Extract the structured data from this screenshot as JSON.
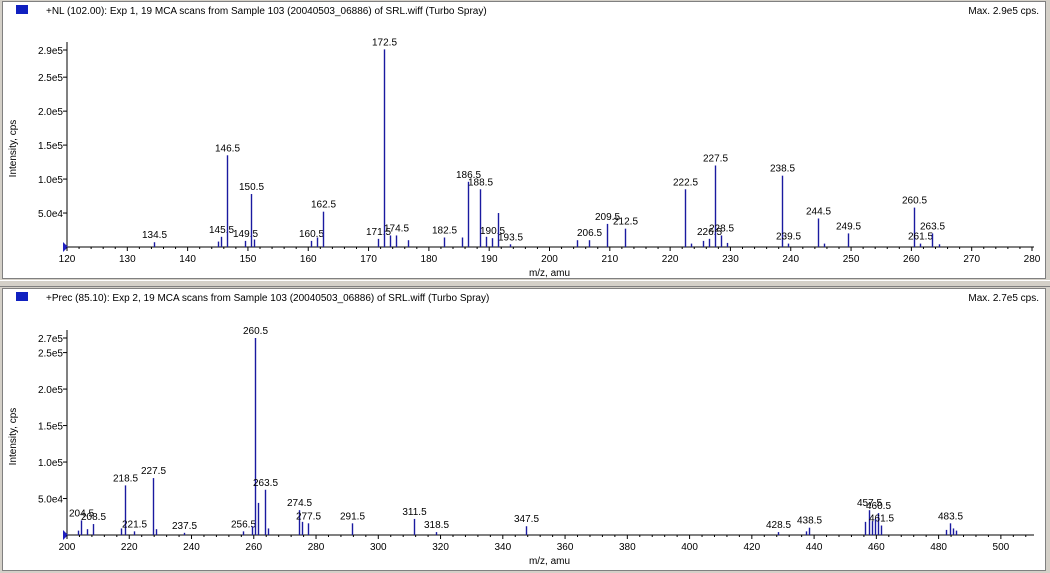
{
  "panels": [
    {
      "title": "+NL (102.00): Exp 1, 19 MCA scans from Sample 103 (20040503_06886) of SRL.wiff (Turbo Spray)",
      "max_text": "Max. 2.9e5 cps."
    },
    {
      "title": "+Prec (85.10): Exp 2, 19 MCA scans from Sample 103 (20040503_06886) of SRL.wiff (Turbo Spray)",
      "max_text": "Max. 2.7e5 cps."
    }
  ],
  "colors": {
    "peak": "#1a1aa0",
    "marker": "#2020c0",
    "axis": "#000000"
  },
  "chart_data": [
    {
      "type": "bar",
      "xlabel": "m/z, amu",
      "ylabel": "Intensity, cps",
      "xlim": [
        120,
        280
      ],
      "ylim": [
        0,
        290000
      ],
      "xticks": [
        120,
        130,
        140,
        150,
        160,
        170,
        180,
        190,
        200,
        210,
        220,
        230,
        240,
        250,
        260,
        270,
        280
      ],
      "yticks": [
        {
          "value": 50000,
          "label": "5.0e4"
        },
        {
          "value": 100000,
          "label": "1.0e5"
        },
        {
          "value": 150000,
          "label": "1.5e5"
        },
        {
          "value": 200000,
          "label": "2.0e5"
        },
        {
          "value": 250000,
          "label": "2.5e5"
        },
        {
          "value": 290000,
          "label": "2.9e5"
        }
      ],
      "peaks": [
        {
          "x": 134.5,
          "y": 7000,
          "label": "134.5"
        },
        {
          "x": 145.5,
          "y": 15000,
          "label": "145.5"
        },
        {
          "x": 146.5,
          "y": 135000,
          "label": "146.5"
        },
        {
          "x": 149.5,
          "y": 9000,
          "label": "149.5"
        },
        {
          "x": 150.5,
          "y": 78000,
          "label": "150.5"
        },
        {
          "x": 160.5,
          "y": 9000,
          "label": "160.5"
        },
        {
          "x": 162.5,
          "y": 52000,
          "label": "162.5"
        },
        {
          "x": 171.5,
          "y": 12000,
          "label": "171.5"
        },
        {
          "x": 172.5,
          "y": 291000,
          "label": "172.5"
        },
        {
          "x": 174.5,
          "y": 17000,
          "label": "174.5"
        },
        {
          "x": 182.5,
          "y": 14000,
          "label": "182.5"
        },
        {
          "x": 186.5,
          "y": 96000,
          "label": "186.5"
        },
        {
          "x": 188.5,
          "y": 85000,
          "label": "188.5"
        },
        {
          "x": 190.5,
          "y": 13000,
          "label": "190.5"
        },
        {
          "x": 193.5,
          "y": 4000,
          "label": "193.5"
        },
        {
          "x": 206.5,
          "y": 10000,
          "label": "206.5"
        },
        {
          "x": 209.5,
          "y": 34000,
          "label": "209.5"
        },
        {
          "x": 212.5,
          "y": 27000,
          "label": "212.5"
        },
        {
          "x": 222.5,
          "y": 85000,
          "label": "222.5"
        },
        {
          "x": 226.5,
          "y": 12000,
          "label": "226.5"
        },
        {
          "x": 227.5,
          "y": 120000,
          "label": "227.5"
        },
        {
          "x": 228.5,
          "y": 17000,
          "label": "228.5"
        },
        {
          "x": 238.5,
          "y": 105000,
          "label": "238.5"
        },
        {
          "x": 239.5,
          "y": 5000,
          "label": "239.5"
        },
        {
          "x": 244.5,
          "y": 42000,
          "label": "244.5"
        },
        {
          "x": 249.5,
          "y": 20000,
          "label": "249.5"
        },
        {
          "x": 260.5,
          "y": 58000,
          "label": "260.5"
        },
        {
          "x": 261.5,
          "y": 5000,
          "label": "261.5"
        },
        {
          "x": 263.5,
          "y": 20000,
          "label": "263.5"
        },
        {
          "x": 145.0,
          "y": 8000,
          "label": ""
        },
        {
          "x": 151.0,
          "y": 11000,
          "label": ""
        },
        {
          "x": 161.5,
          "y": 14000,
          "label": ""
        },
        {
          "x": 173.5,
          "y": 17000,
          "label": ""
        },
        {
          "x": 176.5,
          "y": 10000,
          "label": ""
        },
        {
          "x": 185.5,
          "y": 14000,
          "label": ""
        },
        {
          "x": 189.5,
          "y": 15000,
          "label": ""
        },
        {
          "x": 191.5,
          "y": 50000,
          "label": ""
        },
        {
          "x": 204.5,
          "y": 10000,
          "label": ""
        },
        {
          "x": 223.5,
          "y": 5000,
          "label": ""
        },
        {
          "x": 225.5,
          "y": 9000,
          "label": ""
        },
        {
          "x": 229.5,
          "y": 6000,
          "label": ""
        },
        {
          "x": 245.5,
          "y": 5000,
          "label": ""
        },
        {
          "x": 264.5,
          "y": 4000,
          "label": ""
        }
      ]
    },
    {
      "type": "bar",
      "xlabel": "m/z, amu",
      "ylabel": "Intensity, cps",
      "xlim": [
        200,
        510
      ],
      "ylim": [
        0,
        270000
      ],
      "xticks": [
        200,
        220,
        240,
        260,
        280,
        300,
        320,
        340,
        360,
        380,
        400,
        420,
        440,
        460,
        480,
        500
      ],
      "yticks": [
        {
          "value": 50000,
          "label": "5.0e4"
        },
        {
          "value": 100000,
          "label": "1.0e5"
        },
        {
          "value": 150000,
          "label": "1.5e5"
        },
        {
          "value": 200000,
          "label": "2.0e5"
        },
        {
          "value": 250000,
          "label": "2.5e5"
        },
        {
          "value": 270000,
          "label": "2.7e5"
        }
      ],
      "peaks": [
        {
          "x": 204.5,
          "y": 20000,
          "label": "204.5"
        },
        {
          "x": 208.5,
          "y": 15000,
          "label": "208.5"
        },
        {
          "x": 218.5,
          "y": 68000,
          "label": "218.5"
        },
        {
          "x": 221.5,
          "y": 5000,
          "label": "221.5"
        },
        {
          "x": 227.5,
          "y": 78000,
          "label": "227.5"
        },
        {
          "x": 237.5,
          "y": 3000,
          "label": "237.5"
        },
        {
          "x": 256.5,
          "y": 5000,
          "label": "256.5"
        },
        {
          "x": 260.5,
          "y": 270000,
          "label": "260.5"
        },
        {
          "x": 263.5,
          "y": 62000,
          "label": "263.5"
        },
        {
          "x": 274.5,
          "y": 34000,
          "label": "274.5"
        },
        {
          "x": 277.5,
          "y": 16000,
          "label": "277.5"
        },
        {
          "x": 291.5,
          "y": 16000,
          "label": "291.5"
        },
        {
          "x": 311.5,
          "y": 22000,
          "label": "311.5"
        },
        {
          "x": 318.5,
          "y": 4000,
          "label": "318.5"
        },
        {
          "x": 347.5,
          "y": 12000,
          "label": "347.5"
        },
        {
          "x": 428.5,
          "y": 4000,
          "label": "428.5"
        },
        {
          "x": 438.5,
          "y": 10000,
          "label": "438.5"
        },
        {
          "x": 457.5,
          "y": 34000,
          "label": "457.5"
        },
        {
          "x": 460.5,
          "y": 30000,
          "label": "460.5"
        },
        {
          "x": 461.5,
          "y": 13000,
          "label": "461.5"
        },
        {
          "x": 483.5,
          "y": 16000,
          "label": "483.5"
        },
        {
          "x": 203.5,
          "y": 6000,
          "label": ""
        },
        {
          "x": 206.5,
          "y": 8000,
          "label": ""
        },
        {
          "x": 217.5,
          "y": 9000,
          "label": ""
        },
        {
          "x": 228.5,
          "y": 8000,
          "label": ""
        },
        {
          "x": 259.5,
          "y": 12000,
          "label": ""
        },
        {
          "x": 261.5,
          "y": 44000,
          "label": ""
        },
        {
          "x": 264.5,
          "y": 9000,
          "label": ""
        },
        {
          "x": 275.5,
          "y": 18000,
          "label": ""
        },
        {
          "x": 437.5,
          "y": 5000,
          "label": ""
        },
        {
          "x": 456.5,
          "y": 18000,
          "label": ""
        },
        {
          "x": 458.5,
          "y": 19000,
          "label": ""
        },
        {
          "x": 459.5,
          "y": 22000,
          "label": ""
        },
        {
          "x": 482.5,
          "y": 7000,
          "label": ""
        },
        {
          "x": 484.5,
          "y": 9000,
          "label": ""
        },
        {
          "x": 485.5,
          "y": 6000,
          "label": ""
        }
      ]
    }
  ]
}
